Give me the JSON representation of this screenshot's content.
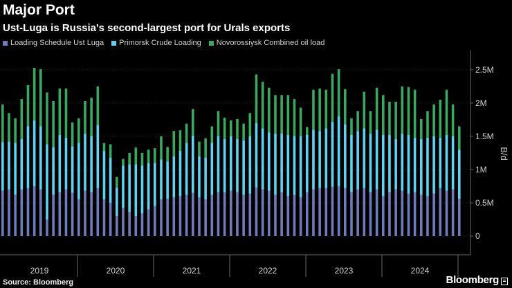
{
  "chart_data": {
    "type": "bar",
    "stacked": true,
    "title": "Major Port",
    "subtitle": "Ust-Luga is Russia's second-largest port for Urals exports",
    "xlabel": "",
    "ylabel": "B/d",
    "x_tick_labels": [
      "2019",
      "2020",
      "2021",
      "2022",
      "2023",
      "2024"
    ],
    "y_ticks": [
      0,
      500000,
      1000000,
      1500000,
      2000000,
      2500000
    ],
    "y_tick_labels": [
      "0",
      "0.5M",
      "1M",
      "1.5M",
      "2M",
      "2.5M"
    ],
    "ylim": [
      0,
      2800000
    ],
    "legend_position": "top-left",
    "grid": true,
    "series": [
      {
        "name": "Loading Schedule Ust Luga",
        "color": "#6f7bbb",
        "values": [
          680000,
          700000,
          620000,
          700000,
          720000,
          750000,
          700000,
          250000,
          620000,
          660000,
          700000,
          650000,
          550000,
          680000,
          660000,
          720000,
          550000,
          500000,
          300000,
          420000,
          360000,
          300000,
          340000,
          400000,
          450000,
          550000,
          560000,
          580000,
          600000,
          620000,
          650000,
          580000,
          550000,
          620000,
          660000,
          660000,
          680000,
          660000,
          620000,
          640000,
          730000,
          700000,
          680000,
          620000,
          660000,
          600000,
          620000,
          580000,
          660000,
          700000,
          720000,
          720000,
          740000,
          750000,
          720000,
          660000,
          700000,
          720000,
          660000,
          700000,
          600000,
          660000,
          700000,
          680000,
          640000,
          660000,
          620000,
          600000,
          640000,
          720000,
          680000,
          700000,
          560000
        ]
      },
      {
        "name": "Primorsk Crude Loading",
        "color": "#5fd3f1",
        "values": [
          730000,
          720000,
          780000,
          760000,
          930000,
          990000,
          950000,
          1130000,
          720000,
          860000,
          780000,
          700000,
          850000,
          860000,
          840000,
          950000,
          730000,
          680000,
          430000,
          640000,
          720000,
          780000,
          720000,
          700000,
          650000,
          600000,
          560000,
          620000,
          680000,
          780000,
          860000,
          620000,
          630000,
          780000,
          840000,
          800000,
          820000,
          800000,
          820000,
          860000,
          970000,
          920000,
          880000,
          920000,
          880000,
          920000,
          880000,
          920000,
          860000,
          900000,
          860000,
          900000,
          980000,
          1050000,
          960000,
          860000,
          880000,
          900000,
          880000,
          900000,
          920000,
          860000,
          760000,
          860000,
          880000,
          820000,
          840000,
          880000,
          860000,
          760000,
          840000,
          800000,
          740000
        ]
      },
      {
        "name": "Novorossiysk Combined oil load",
        "color": "#3aa85e",
        "values": [
          570000,
          430000,
          370000,
          600000,
          620000,
          790000,
          860000,
          780000,
          690000,
          700000,
          740000,
          360000,
          370000,
          490000,
          580000,
          580000,
          120000,
          200000,
          160000,
          100000,
          170000,
          250000,
          190000,
          200000,
          220000,
          350000,
          220000,
          380000,
          310000,
          290000,
          400000,
          220000,
          290000,
          250000,
          380000,
          320000,
          240000,
          300000,
          250000,
          350000,
          730000,
          700000,
          670000,
          580000,
          580000,
          600000,
          560000,
          430000,
          120000,
          600000,
          640000,
          580000,
          720000,
          710000,
          530000,
          250000,
          300000,
          550000,
          340000,
          630000,
          600000,
          500000,
          560000,
          710000,
          720000,
          720000,
          300000,
          400000,
          480000,
          570000,
          680000,
          480000,
          350000
        ]
      }
    ]
  },
  "footer": {
    "source": "Source: Bloomberg",
    "logo_text": "Bloomberg"
  }
}
